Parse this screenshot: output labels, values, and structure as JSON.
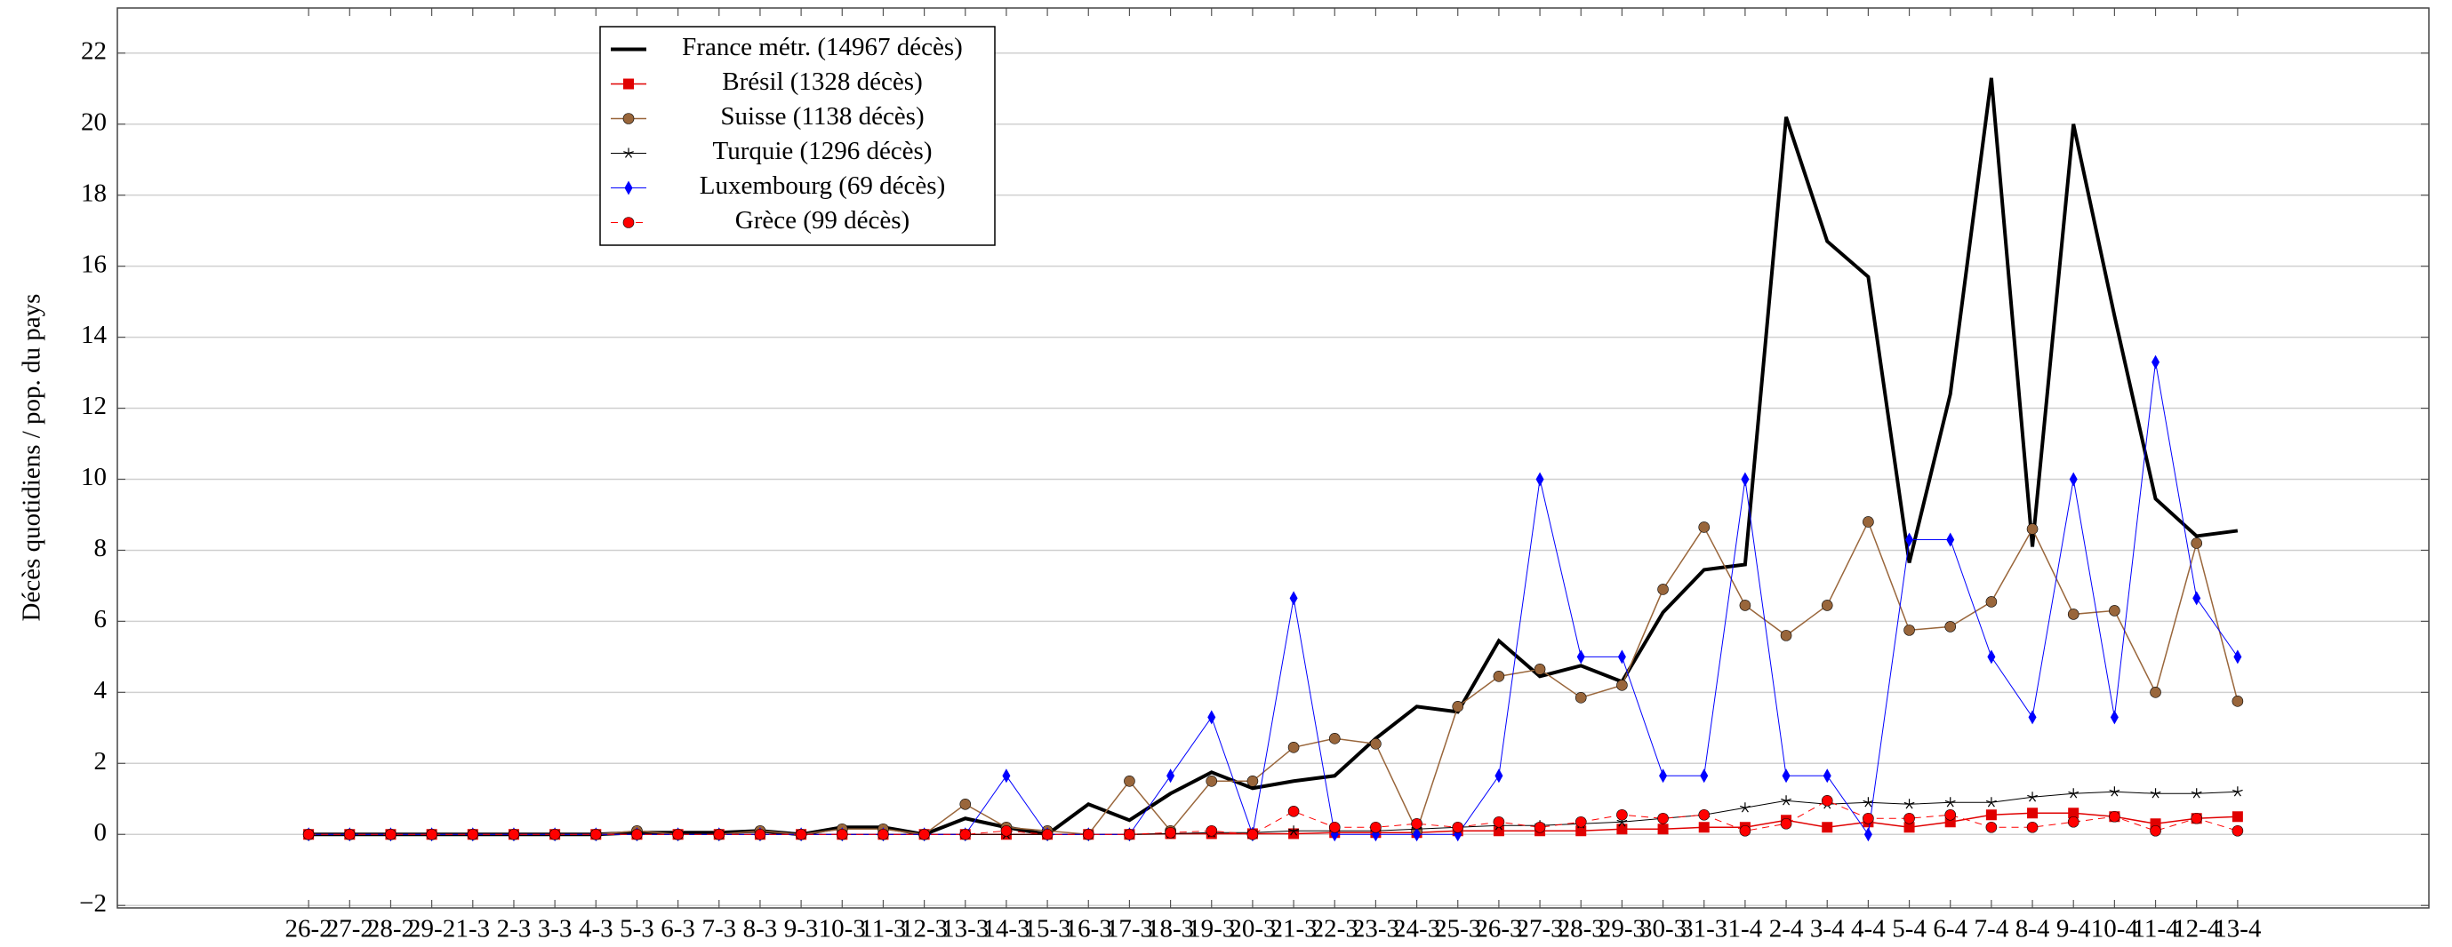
{
  "chart_data": {
    "type": "line",
    "y_label": "Décès quotidiens / pop. du pays",
    "categories": [
      "26-2",
      "27-2",
      "28-2",
      "29-2",
      "1-3",
      "2-3",
      "3-3",
      "4-3",
      "5-3",
      "6-3",
      "7-3",
      "8-3",
      "9-3",
      "10-3",
      "11-3",
      "12-3",
      "13-3",
      "14-3",
      "15-3",
      "16-3",
      "17-3",
      "18-3",
      "19-3",
      "20-3",
      "21-3",
      "22-3",
      "23-3",
      "24-3",
      "25-3",
      "26-3",
      "27-3",
      "28-3",
      "29-3",
      "30-3",
      "31-3",
      "1-4",
      "2-4",
      "3-4",
      "4-4",
      "5-4",
      "6-4",
      "7-4",
      "8-4",
      "9-4",
      "10-4",
      "11-4",
      "12-4",
      "13-4"
    ],
    "ylim": [
      -2.07,
      23.27
    ],
    "yticks": [
      {
        "value": -2,
        "label": "−2"
      },
      0,
      2,
      4,
      6,
      8,
      10,
      12,
      14,
      16,
      18,
      20,
      22
    ],
    "grid": true,
    "legend": "top-left",
    "series": [
      {
        "name": "France métr. (14967 décès)",
        "color": "#000000",
        "marker": "none",
        "dash": "solid",
        "width": 4,
        "values": [
          0,
          0,
          0,
          0,
          0,
          0,
          0,
          0,
          0.05,
          0.05,
          0.05,
          0.1,
          0,
          0.2,
          0.2,
          0,
          0.45,
          0.2,
          0,
          0.85,
          0.4,
          1.15,
          1.75,
          1.3,
          1.5,
          1.65,
          2.7,
          3.6,
          3.45,
          5.45,
          4.45,
          4.75,
          4.3,
          6.25,
          7.45,
          7.6,
          20.2,
          16.7,
          15.7,
          7.65,
          12.4,
          21.3,
          8.1,
          20.0,
          14.6,
          9.45,
          8.4,
          8.55
        ]
      },
      {
        "name": "Brésil (1328 décès)",
        "color": "#e00000",
        "marker": "square",
        "dash": "solid",
        "width": 1.5,
        "values": [
          0,
          0,
          0,
          0,
          0,
          0,
          0,
          0,
          0,
          0,
          0,
          0,
          0,
          0,
          0,
          0,
          0,
          0,
          0,
          0,
          0,
          0.02,
          0.02,
          0.02,
          0.02,
          0.05,
          0.05,
          0.05,
          0.1,
          0.1,
          0.1,
          0.1,
          0.15,
          0.15,
          0.2,
          0.2,
          0.4,
          0.2,
          0.35,
          0.2,
          0.35,
          0.55,
          0.6,
          0.6,
          0.5,
          0.3,
          0.45,
          0.5
        ]
      },
      {
        "name": "Suisse (1138 décès)",
        "color": "#99663b",
        "marker": "circle",
        "dash": "solid",
        "width": 1.5,
        "values": [
          0,
          0,
          0,
          0,
          0,
          0,
          0,
          0,
          0.1,
          0,
          0,
          0.1,
          0,
          0.15,
          0.15,
          0,
          0.85,
          0.2,
          0.1,
          0,
          1.5,
          0.1,
          1.5,
          1.5,
          2.45,
          2.7,
          2.55,
          0.1,
          3.6,
          4.45,
          4.65,
          3.85,
          4.2,
          6.9,
          8.65,
          6.45,
          5.6,
          6.45,
          8.8,
          5.75,
          5.85,
          6.55,
          8.6,
          6.2,
          6.3,
          4.0,
          8.2,
          3.75
        ]
      },
      {
        "name": "Turquie (1296 décès)",
        "color": "#000000",
        "marker": "star",
        "dash": "solid",
        "width": 1,
        "values": [
          0,
          0,
          0,
          0,
          0,
          0,
          0,
          0,
          0,
          0,
          0,
          0,
          0,
          0,
          0,
          0,
          0,
          0,
          0,
          0,
          0,
          0.02,
          0.05,
          0.05,
          0.1,
          0.1,
          0.1,
          0.15,
          0.2,
          0.25,
          0.25,
          0.3,
          0.35,
          0.45,
          0.55,
          0.75,
          0.95,
          0.85,
          0.9,
          0.85,
          0.9,
          0.9,
          1.05,
          1.15,
          1.2,
          1.15,
          1.15,
          1.2
        ]
      },
      {
        "name": "Luxembourg (69 décès)",
        "color": "#0000ff",
        "marker": "diamond",
        "dash": "solid",
        "width": 1,
        "values": [
          0,
          0,
          0,
          0,
          0,
          0,
          0,
          0,
          0,
          0,
          0,
          0,
          0,
          0,
          0,
          0,
          0,
          1.65,
          0,
          0,
          0,
          1.65,
          3.3,
          0,
          6.65,
          0,
          0,
          0,
          0,
          1.65,
          10,
          5,
          5,
          1.65,
          1.65,
          10,
          1.65,
          1.65,
          0,
          8.3,
          8.3,
          5,
          3.3,
          10,
          3.3,
          13.3,
          6.65,
          5
        ]
      },
      {
        "name": "Grèce (99 décès)",
        "color": "#ff0000",
        "marker": "circle",
        "dash": "dashed",
        "width": 1,
        "values": [
          0,
          0,
          0,
          0,
          0,
          0,
          0,
          0,
          0,
          0,
          0,
          0,
          0,
          0,
          0,
          0,
          0,
          0.1,
          0,
          0,
          0,
          0.05,
          0.1,
          0,
          0.65,
          0.2,
          0.2,
          0.3,
          0.2,
          0.35,
          0.2,
          0.35,
          0.55,
          0.45,
          0.55,
          0.1,
          0.3,
          0.95,
          0.45,
          0.45,
          0.55,
          0.2,
          0.2,
          0.35,
          0.5,
          0.1,
          0.45,
          0.1
        ]
      }
    ]
  }
}
